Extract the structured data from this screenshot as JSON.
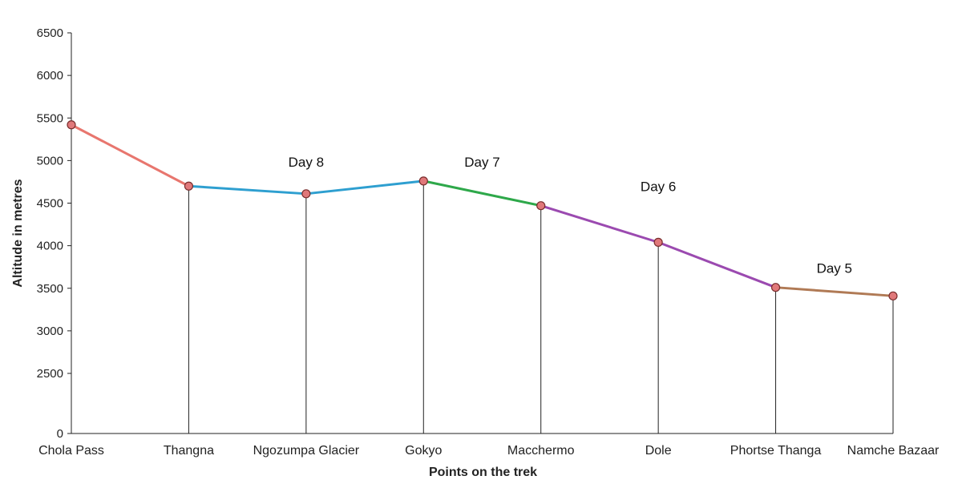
{
  "chart_data": {
    "type": "line",
    "title": "",
    "xlabel": "Points on the trek",
    "ylabel": "Altitude in metres",
    "ylim": [
      0,
      6500
    ],
    "yticks": [
      0,
      2500,
      3000,
      3500,
      4000,
      4500,
      5000,
      5500,
      6000,
      6500
    ],
    "grid": false,
    "categories": [
      "Chola Pass",
      "Thangna",
      "Ngozumpa Glacier",
      "Gokyo",
      "Macchermo",
      "Dole",
      "Phortse Thanga",
      "Namche Bazaar"
    ],
    "values": [
      5420,
      4700,
      4610,
      4760,
      4470,
      4040,
      3510,
      3410
    ],
    "segments": [
      {
        "from": 0,
        "to": 1,
        "label": "",
        "color": "#e8766e"
      },
      {
        "from": 1,
        "to": 3,
        "label": "Day 8",
        "color": "#2e9fd0"
      },
      {
        "from": 3,
        "to": 4,
        "label": "Day 7",
        "color": "#2ea84a"
      },
      {
        "from": 4,
        "to": 6,
        "label": "Day 6",
        "color": "#9b4ab0"
      },
      {
        "from": 6,
        "to": 7,
        "label": "Day 5",
        "color": "#b07a55"
      }
    ],
    "marker_color": "#e0787a",
    "marker_stroke": "#7a2e2e"
  }
}
